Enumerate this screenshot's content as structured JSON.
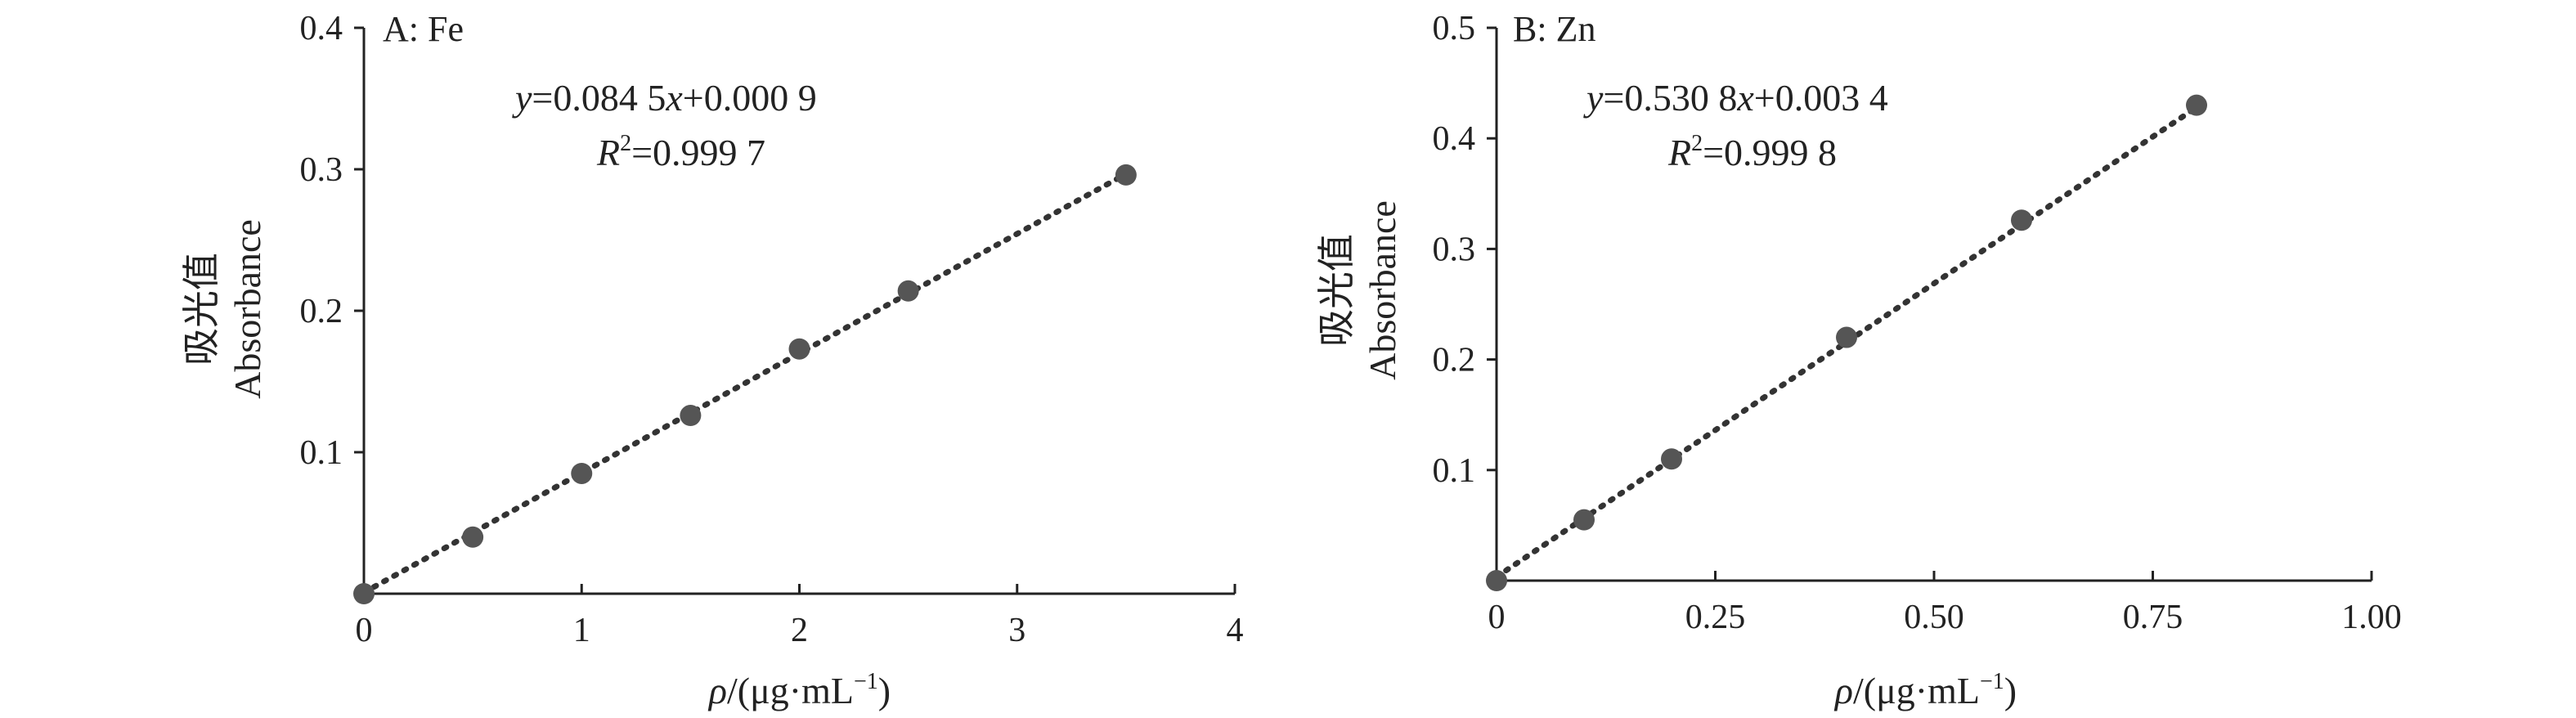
{
  "chart_data": [
    {
      "type": "scatter",
      "panel_label": "A: Fe",
      "equation": {
        "y": "y",
        "eq": "=0.084 5",
        "x": "x",
        "rest": "+0.000 9"
      },
      "r2": {
        "r": "R",
        "sup": "2",
        "rest": "=0.999 7"
      },
      "xlabel": {
        "rho": "ρ",
        "unit": "/(μg·mL",
        "sup": "−1",
        "close": ")"
      },
      "ylabel": {
        "cn": "吸光值",
        "en": "Absorbance"
      },
      "xlim": [
        0,
        4
      ],
      "ylim": [
        0,
        0.4
      ],
      "xticks": [
        0,
        1,
        2,
        3,
        4
      ],
      "xtick_labels": [
        "0",
        "1",
        "2",
        "3",
        "4"
      ],
      "yticks": [
        0.1,
        0.2,
        0.3,
        0.4
      ],
      "ytick_labels": [
        "0.1",
        "0.2",
        "0.3",
        "0.4"
      ],
      "points": [
        {
          "x": 0,
          "y": 0.0
        },
        {
          "x": 0.5,
          "y": 0.04
        },
        {
          "x": 1,
          "y": 0.085
        },
        {
          "x": 1.5,
          "y": 0.126
        },
        {
          "x": 2,
          "y": 0.173
        },
        {
          "x": 2.5,
          "y": 0.214
        },
        {
          "x": 3.5,
          "y": 0.296
        }
      ],
      "fit": {
        "slope": 0.0845,
        "intercept": 0.0009
      },
      "fit_range": [
        0,
        3.5
      ]
    },
    {
      "type": "scatter",
      "panel_label": "B: Zn",
      "equation": {
        "y": "y",
        "eq": "=0.530 8",
        "x": "x",
        "rest": "+0.003 4"
      },
      "r2": {
        "r": "R",
        "sup": "2",
        "rest": "=0.999 8"
      },
      "xlabel": {
        "rho": "ρ",
        "unit": "/(μg·mL",
        "sup": "−1",
        "close": ")"
      },
      "ylabel": {
        "cn": "吸光值",
        "en": "Absorbance"
      },
      "xlim": [
        0,
        1.0
      ],
      "ylim": [
        0,
        0.5
      ],
      "xticks": [
        0,
        0.25,
        0.5,
        0.75,
        1.0
      ],
      "xtick_labels": [
        "0",
        "0.25",
        "0.50",
        "0.75",
        "1.00"
      ],
      "yticks": [
        0.1,
        0.2,
        0.3,
        0.4,
        0.5
      ],
      "ytick_labels": [
        "0.1",
        "0.2",
        "0.3",
        "0.4",
        "0.5"
      ],
      "points": [
        {
          "x": 0,
          "y": 0.0
        },
        {
          "x": 0.1,
          "y": 0.055
        },
        {
          "x": 0.2,
          "y": 0.11
        },
        {
          "x": 0.4,
          "y": 0.22
        },
        {
          "x": 0.6,
          "y": 0.326
        },
        {
          "x": 0.8,
          "y": 0.43
        }
      ],
      "fit": {
        "slope": 0.5308,
        "intercept": 0.0034
      },
      "fit_range": [
        0,
        0.8
      ]
    }
  ]
}
